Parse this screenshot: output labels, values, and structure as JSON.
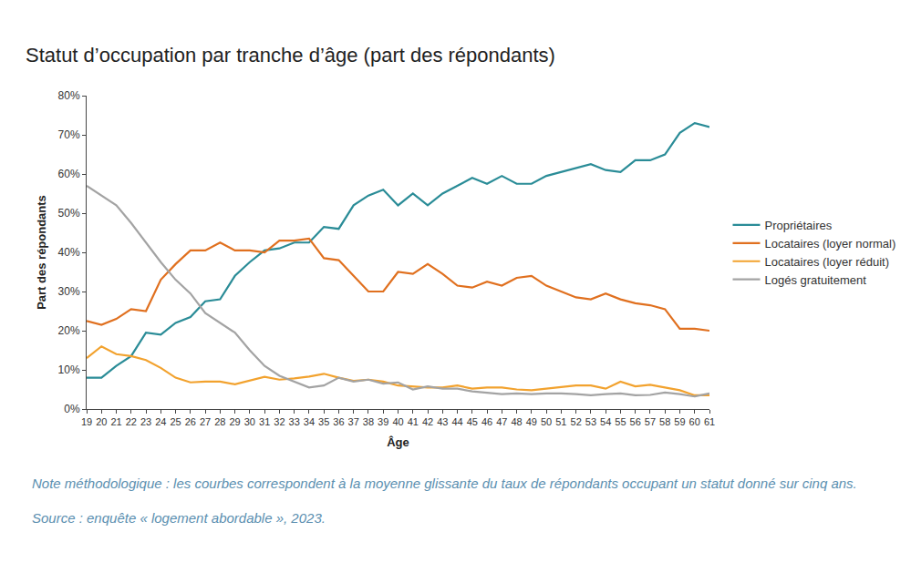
{
  "chart_data": {
    "type": "line",
    "title": "Statut d’occupation par tranche d’âge (part des répondants)",
    "x_label": "Âge",
    "y_label": "Part des répondants",
    "x": [
      19,
      20,
      21,
      22,
      23,
      24,
      25,
      26,
      27,
      28,
      29,
      30,
      31,
      32,
      33,
      34,
      35,
      36,
      37,
      38,
      39,
      40,
      41,
      42,
      43,
      44,
      45,
      46,
      47,
      48,
      49,
      50,
      51,
      52,
      53,
      54,
      55,
      56,
      57,
      58,
      59,
      60,
      61
    ],
    "series": [
      {
        "name": "Propriétaires",
        "color": "#2a8c97",
        "values": [
          8,
          8,
          11,
          13.5,
          19.5,
          19,
          22,
          23.5,
          27.5,
          28,
          34,
          37.5,
          40.5,
          41,
          42.5,
          42.5,
          46.5,
          46,
          52,
          54.5,
          56,
          52,
          55,
          52,
          55,
          57,
          59,
          57.5,
          59.5,
          57.5,
          57.5,
          59.5,
          60.5,
          61.5,
          62.5,
          61,
          60.5,
          63.5,
          63.5,
          65,
          70.5,
          73,
          72
        ]
      },
      {
        "name": "Locataires (loyer normal)",
        "color": "#e0701f",
        "values": [
          22.5,
          21.5,
          23,
          25.5,
          25,
          33,
          37,
          40.5,
          40.5,
          42.5,
          40.5,
          40.5,
          40,
          43,
          43,
          43.5,
          38.5,
          38,
          34,
          30,
          30,
          35,
          34.5,
          37,
          34.5,
          31.5,
          31,
          32.5,
          31.5,
          33.5,
          34,
          31.5,
          30,
          28.5,
          28,
          29.5,
          28,
          27,
          26.5,
          25.5,
          20.5,
          20.5,
          20
        ]
      },
      {
        "name": "Locataires (loyer réduit)",
        "color": "#f2a22e",
        "values": [
          13,
          16,
          14,
          13.5,
          12.5,
          10.5,
          8,
          6.8,
          7,
          7,
          6.3,
          7.2,
          8.2,
          7.5,
          7.8,
          8.3,
          9,
          8,
          7.2,
          7.5,
          7,
          6,
          5.8,
          5.5,
          5.5,
          6,
          5.2,
          5.5,
          5.5,
          5,
          4.8,
          5.2,
          5.5,
          6,
          6,
          5.2,
          7,
          5.8,
          6.2,
          5.5,
          4.8,
          3.5,
          3.5
        ]
      },
      {
        "name": "Logés gratuitement",
        "color": "#a3a3a3",
        "values": [
          57,
          54.5,
          52,
          47.5,
          42.5,
          37.5,
          33,
          29.5,
          24.5,
          22,
          19.5,
          15,
          11,
          8.5,
          7,
          5.5,
          6,
          8,
          7,
          7.5,
          6.5,
          6.8,
          5,
          5.8,
          5.2,
          5.2,
          4.5,
          4.2,
          3.8,
          4,
          3.8,
          4,
          4,
          3.8,
          3.5,
          3.8,
          4,
          3.5,
          3.6,
          4.2,
          3.8,
          3.2,
          4
        ]
      }
    ],
    "xlim": [
      19,
      61
    ],
    "xticks": [
      19,
      20,
      21,
      22,
      23,
      24,
      25,
      26,
      27,
      28,
      29,
      30,
      31,
      32,
      33,
      34,
      35,
      36,
      37,
      38,
      39,
      40,
      41,
      42,
      43,
      44,
      45,
      46,
      47,
      48,
      49,
      50,
      51,
      52,
      53,
      54,
      55,
      56,
      57,
      58,
      59,
      60,
      61
    ],
    "ylim": [
      0,
      80
    ],
    "yticks": [
      {
        "value": 0,
        "label": "0%"
      },
      {
        "value": 10,
        "label": "10%"
      },
      {
        "value": 20,
        "label": "20%"
      },
      {
        "value": 30,
        "label": "30%"
      },
      {
        "value": 40,
        "label": "40%"
      },
      {
        "value": 50,
        "label": "50%"
      },
      {
        "value": 60,
        "label": "60%"
      },
      {
        "value": 70,
        "label": "70%"
      },
      {
        "value": 80,
        "label": "80%"
      }
    ],
    "grid": false,
    "legend": "right",
    "annotations": [
      "Note méthodologique : les courbes correspondent à la moyenne glissante du taux de répondants occupant un statut donné sur cinq ans.",
      "Source : enquête « logement abordable », 2023."
    ]
  }
}
